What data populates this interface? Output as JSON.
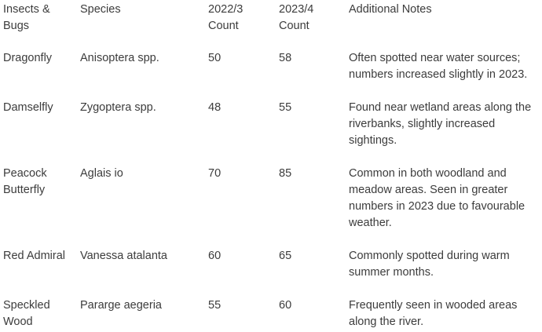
{
  "table": {
    "headers": {
      "insect": "Insects & Bugs",
      "species": "Species",
      "count_2022": "2022/3 Count",
      "count_2023": "2023/4 Count",
      "notes": "Additional Notes"
    },
    "rows": [
      {
        "insect": "Dragonfly",
        "species": "Anisoptera spp.",
        "count_2022": "50",
        "count_2023": "58",
        "notes": "Often spotted near water sources; numbers increased slightly in 2023."
      },
      {
        "insect": "Damselfly",
        "species": "Zygoptera spp.",
        "count_2022": "48",
        "count_2023": "55",
        "notes": "Found near wetland areas along the riverbanks, slightly increased sightings."
      },
      {
        "insect": "Peacock Butterfly",
        "species": "Aglais io",
        "count_2022": "70",
        "count_2023": "85",
        "notes": "Common in both woodland and meadow areas. Seen in greater numbers in 2023 due to favourable weather."
      },
      {
        "insect": "Red Admiral",
        "species": "Vanessa atalanta",
        "count_2022": "60",
        "count_2023": "65",
        "notes": "Commonly spotted during warm summer months."
      },
      {
        "insect": "Speckled Wood",
        "species": "Pararge aegeria",
        "count_2022": "55",
        "count_2023": "60",
        "notes": "Frequently seen in wooded areas along the river."
      }
    ]
  }
}
